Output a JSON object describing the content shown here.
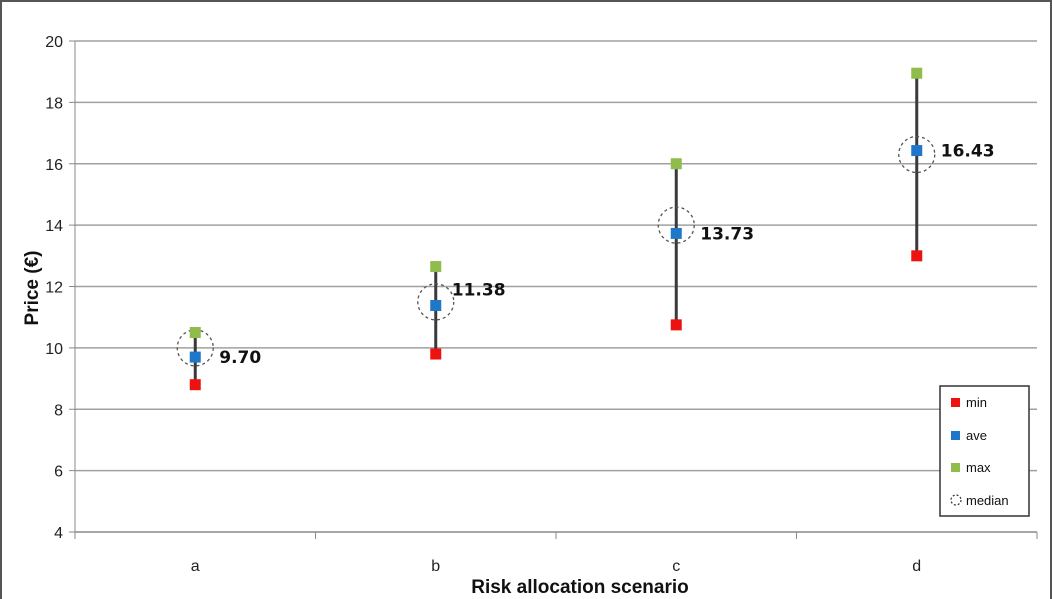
{
  "chart_data": {
    "type": "scatter",
    "title": "",
    "xlabel": "Risk allocation scenario",
    "ylabel": "Price (€)",
    "ylim": [
      4,
      20
    ],
    "yticks": [
      4,
      6,
      8,
      10,
      12,
      14,
      16,
      18,
      20
    ],
    "categories": [
      "a",
      "b",
      "c",
      "d"
    ],
    "grid": true,
    "legend_position": "bottom-right",
    "series": [
      {
        "name": "min",
        "marker": "square",
        "color": "#ee1111",
        "values": [
          8.8,
          9.8,
          10.75,
          13.0
        ]
      },
      {
        "name": "ave",
        "marker": "square",
        "color": "#1f77c9",
        "values": [
          9.7,
          11.38,
          13.73,
          16.43
        ]
      },
      {
        "name": "max",
        "marker": "square",
        "color": "#8fbc4a",
        "values": [
          10.5,
          12.65,
          16.0,
          18.95
        ]
      },
      {
        "name": "median",
        "marker": "dashed-circle",
        "color": "#333333",
        "values": [
          10.0,
          11.5,
          14.0,
          16.3
        ]
      }
    ],
    "data_labels": [
      "9.70",
      "11.38",
      "13.73",
      "16.43"
    ]
  }
}
